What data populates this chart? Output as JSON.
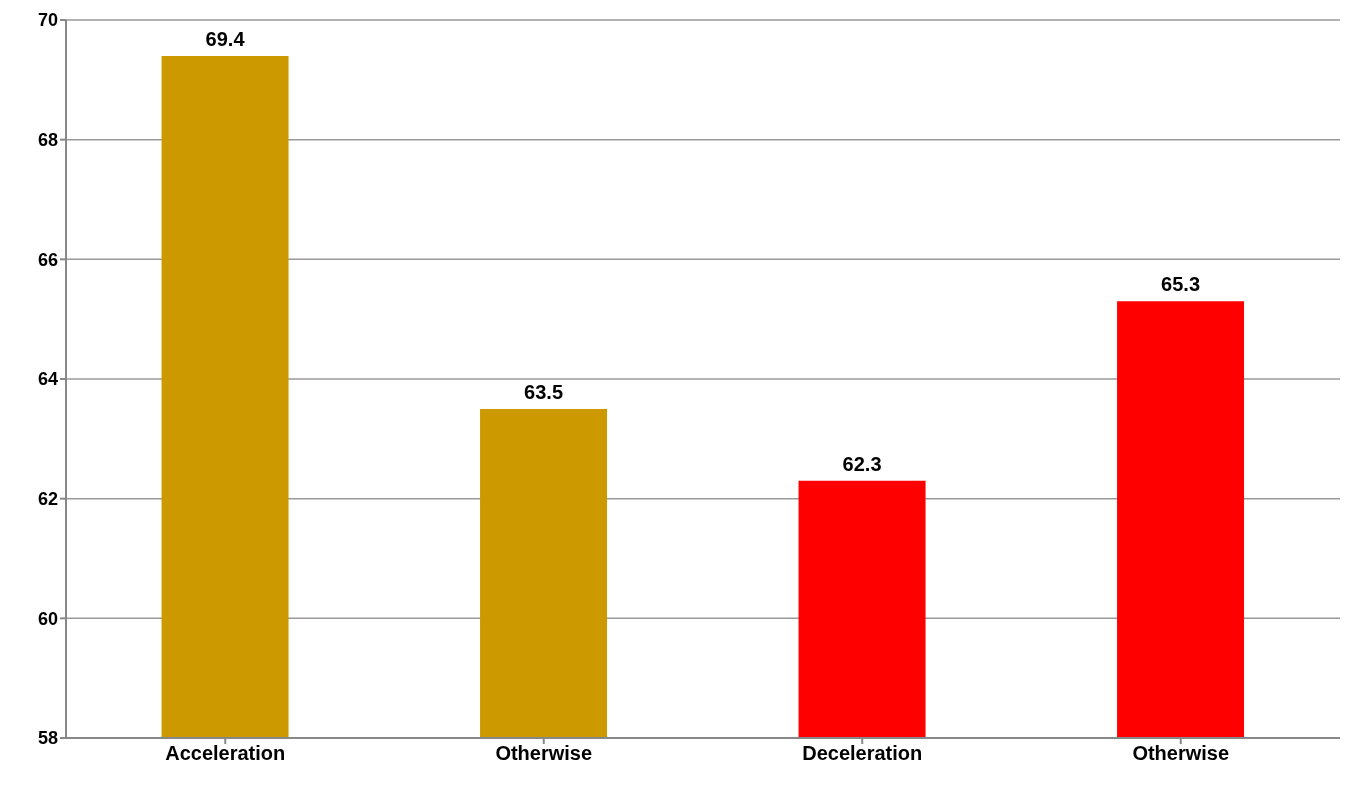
{
  "chart_data": {
    "type": "bar",
    "categories": [
      "Acceleration",
      "Otherwise",
      "Deceleration",
      "Otherwise"
    ],
    "values": [
      69.4,
      63.5,
      62.3,
      65.3
    ],
    "colors": [
      "#cc9900",
      "#cc9900",
      "#ff0000",
      "#ff0000"
    ],
    "ylim": [
      58,
      70
    ],
    "yticks": [
      58,
      60,
      62,
      64,
      66,
      68,
      70
    ],
    "grid": "y",
    "data_labels": true,
    "legend": false
  }
}
